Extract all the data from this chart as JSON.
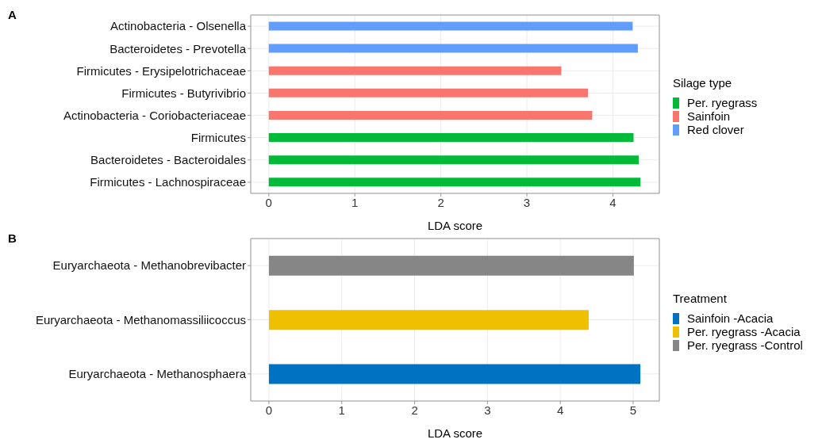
{
  "chart_data": [
    {
      "type": "bar",
      "title": "A",
      "orientation": "horizontal",
      "stacked": true,
      "xlabel": "LDA score",
      "legend_title": "Silage type",
      "legend": "right",
      "grid": true,
      "categories": [
        "Actinobacteria - Olsenella",
        "Bacteroidetes - Prevotella",
        "Firmicutes - Erysipelotrichaceae",
        "Firmicutes - Butyrivibrio",
        "Actinobacteria - Coriobacteriaceae",
        "Firmicutes",
        "Bacteroidetes - Bacteroidales",
        "Firmicutes - Lachnospiraceae"
      ],
      "series": [
        {
          "name": "Per. ryegrass",
          "color": "#00ba38",
          "values": [
            null,
            null,
            null,
            null,
            null,
            4.24,
            4.3,
            4.32
          ]
        },
        {
          "name": "Sainfoin",
          "color": "#f8766d",
          "values": [
            null,
            null,
            3.4,
            3.71,
            3.76,
            null,
            null,
            null
          ]
        },
        {
          "name": "Red clover",
          "color": "#619cff",
          "values": [
            4.23,
            4.29,
            null,
            null,
            null,
            null,
            null,
            null
          ]
        }
      ],
      "xlim": [
        -0.21,
        4.54
      ],
      "xticks": [
        0,
        1,
        2,
        3,
        4
      ]
    },
    {
      "type": "bar",
      "title": "B",
      "orientation": "horizontal",
      "stacked": true,
      "xlabel": "LDA score",
      "legend_title": "Treatment",
      "legend": "right",
      "grid": true,
      "categories": [
        "Euryarchaeota - Methanobrevibacter",
        "Euryarchaeota - Methanomassiliicoccus",
        "Euryarchaeota - Methanosphaera"
      ],
      "series": [
        {
          "name": "Sainfoin -Acacia",
          "color": "#0072c2",
          "values": [
            null,
            null,
            5.1
          ]
        },
        {
          "name": "Per. ryegrass -Acacia",
          "color": "#efc000",
          "values": [
            null,
            4.39,
            null
          ]
        },
        {
          "name": "Per. ryegrass -Control",
          "color": "#868686",
          "values": [
            5.01,
            null,
            null
          ]
        }
      ],
      "xlim": [
        -0.25,
        5.36
      ],
      "xticks": [
        0,
        1,
        2,
        3,
        4,
        5
      ]
    }
  ]
}
